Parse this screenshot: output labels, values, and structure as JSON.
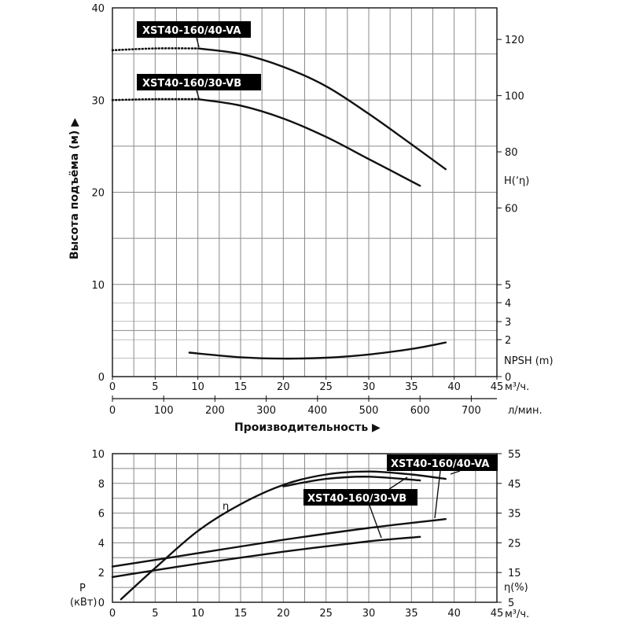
{
  "chart_data": [
    {
      "type": "line",
      "series": [
        {
          "name": "XST40-160/40-VA",
          "x": [
            0,
            5,
            10,
            15,
            20,
            25,
            30,
            35,
            39
          ],
          "values": [
            35.4,
            35.6,
            35.6,
            35.0,
            33.6,
            31.5,
            28.5,
            25.2,
            22.5
          ]
        },
        {
          "name": "XST40-160/30-VB",
          "x": [
            0,
            5,
            10,
            15,
            20,
            25,
            30,
            36
          ],
          "values": [
            30.0,
            30.1,
            30.1,
            29.4,
            28.0,
            26.0,
            23.6,
            20.7
          ]
        },
        {
          "name": "NPSH",
          "x": [
            9,
            15,
            20,
            25,
            30,
            35,
            39
          ],
          "values": [
            2.6,
            2.1,
            1.95,
            2.05,
            2.4,
            3.0,
            3.7
          ]
        }
      ],
      "curve_labels": [
        "XST40-160/40-VA",
        "XST40-160/30-VB"
      ],
      "ylabel": "Высота подъёма (м) ▶",
      "xlabel": "Производительность ▶",
      "xlim": [
        0,
        45
      ],
      "ylim": [
        0,
        40
      ],
      "x_unit": "м³/ч.",
      "x_ticks": [
        "0",
        "5",
        "10",
        "15",
        "20",
        "25",
        "30",
        "35",
        "40",
        "45"
      ],
      "y_ticks": [
        "0",
        "10",
        "20",
        "30",
        "40"
      ],
      "x2_unit": "л/мин.",
      "x2_ticks": [
        "0",
        "100",
        "200",
        "300",
        "400",
        "500",
        "600",
        "700"
      ],
      "right_axis_label": "H(ʼη)",
      "right_ticks_head": [
        "60",
        "80",
        "100",
        "120"
      ],
      "npsh_label": "NPSH (m)",
      "npsh_ticks": [
        "0",
        "2",
        "3",
        "4",
        "5"
      ],
      "grid": true
    },
    {
      "type": "line",
      "series": [
        {
          "name": "η",
          "x": [
            1,
            5,
            10,
            15,
            20,
            25,
            30,
            35,
            39
          ],
          "values": [
            0.2,
            2.3,
            4.8,
            6.6,
            7.9,
            8.6,
            8.8,
            8.6,
            8.3
          ]
        },
        {
          "name": "XST40-160/40-VA",
          "x": [
            0,
            10,
            20,
            30,
            39
          ],
          "values": [
            2.4,
            3.3,
            4.2,
            5.0,
            5.6
          ]
        },
        {
          "name": "XST40-160/30-VB",
          "x": [
            0,
            10,
            20,
            30,
            36
          ],
          "values": [
            1.7,
            2.6,
            3.4,
            4.1,
            4.4
          ]
        }
      ],
      "curve_labels": [
        "XST40-160/40-VA",
        "XST40-160/30-VB"
      ],
      "eta_label": "η",
      "ylabel_line1": "P",
      "ylabel_line2": "(кВт)",
      "xlim": [
        0,
        45
      ],
      "ylim": [
        0,
        10
      ],
      "x_unit": "м³/ч.",
      "x_ticks": [
        "0",
        "5",
        "10",
        "15",
        "20",
        "25",
        "30",
        "35",
        "40",
        "45"
      ],
      "y_ticks": [
        "0",
        "2",
        "4",
        "6",
        "8",
        "10"
      ],
      "right_ticks": [
        "5",
        "15",
        "25",
        "35",
        "45",
        "55"
      ],
      "right_axis_label": "η(%)",
      "grid": true
    }
  ]
}
